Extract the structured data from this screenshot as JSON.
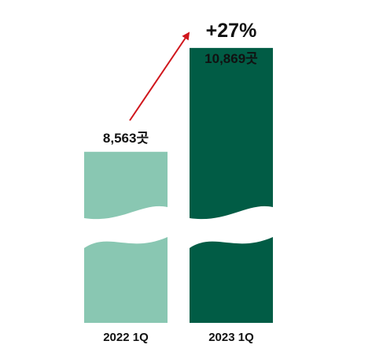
{
  "chart_data": {
    "type": "bar",
    "categories": [
      "2022 1Q",
      "2023 1Q"
    ],
    "values": [
      8563,
      10869
    ],
    "value_labels": [
      "8,563곳",
      "10,869곳"
    ],
    "annotation": "+27%",
    "axis_break": true,
    "colors": [
      "#89C7B2",
      "#015C45"
    ],
    "arrow_color": "#D0161C",
    "title": "",
    "xlabel": "",
    "ylabel": ""
  }
}
